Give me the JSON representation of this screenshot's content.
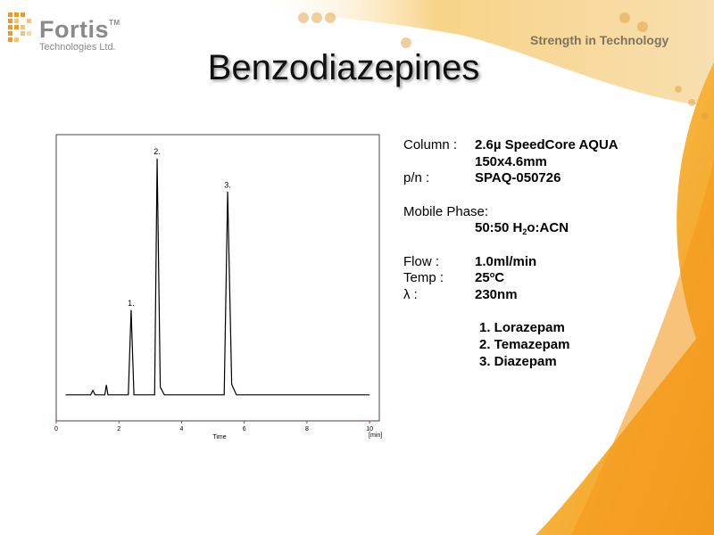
{
  "header": {
    "brand": "Fortis",
    "brand_mark": "TM",
    "subtitle": "Technologies Ltd.",
    "tagline": "Strength in Technology"
  },
  "title": "Benzodiazepines",
  "chart_data": {
    "type": "line",
    "xlabel": "Time",
    "xunit": "[min]",
    "xlim": [
      0,
      10.31
    ],
    "xticks": [
      0,
      2,
      4,
      6,
      8,
      10
    ],
    "ylim": [
      -10,
      100
    ],
    "series": [
      {
        "color": "#000000",
        "x": [
          0.3,
          1.1,
          1.17,
          1.24,
          1.55,
          1.6,
          1.65,
          2.3,
          2.39,
          2.48,
          3.14,
          3.22,
          3.32,
          3.45,
          5.36,
          5.47,
          5.6,
          5.75,
          10.0
        ],
        "values": [
          0,
          0,
          1.7,
          0,
          0,
          3.8,
          0,
          0,
          32.6,
          0,
          0,
          90.8,
          3,
          0,
          0,
          78.1,
          4,
          0,
          0
        ]
      }
    ],
    "annotations": [
      {
        "text": "1.",
        "x": 2.39,
        "y": 32.6
      },
      {
        "text": "2.",
        "x": 3.22,
        "y": 90.8
      },
      {
        "text": "3.",
        "x": 5.47,
        "y": 78.1
      }
    ]
  },
  "conditions": {
    "column": {
      "label": "Column :",
      "lines": [
        "2.6µ SpeedCore AQUA",
        "150x4.6mm"
      ]
    },
    "part_number": {
      "label": "p/n :",
      "value": "SPAQ-050726"
    },
    "mobile_phase": {
      "label": "Mobile Phase:",
      "parts": [
        "50:50 H",
        "2",
        "o:ACN"
      ]
    },
    "flow": {
      "label": "Flow :",
      "value": "1.0ml/min"
    },
    "temp": {
      "label": "Temp :",
      "parts": [
        "25",
        "o",
        "C"
      ]
    },
    "wavelength": {
      "label": "λ :",
      "value": "230nm"
    }
  },
  "compounds": [
    "1. Lorazepam",
    "2. Temazepam",
    "3. Diazepam"
  ]
}
